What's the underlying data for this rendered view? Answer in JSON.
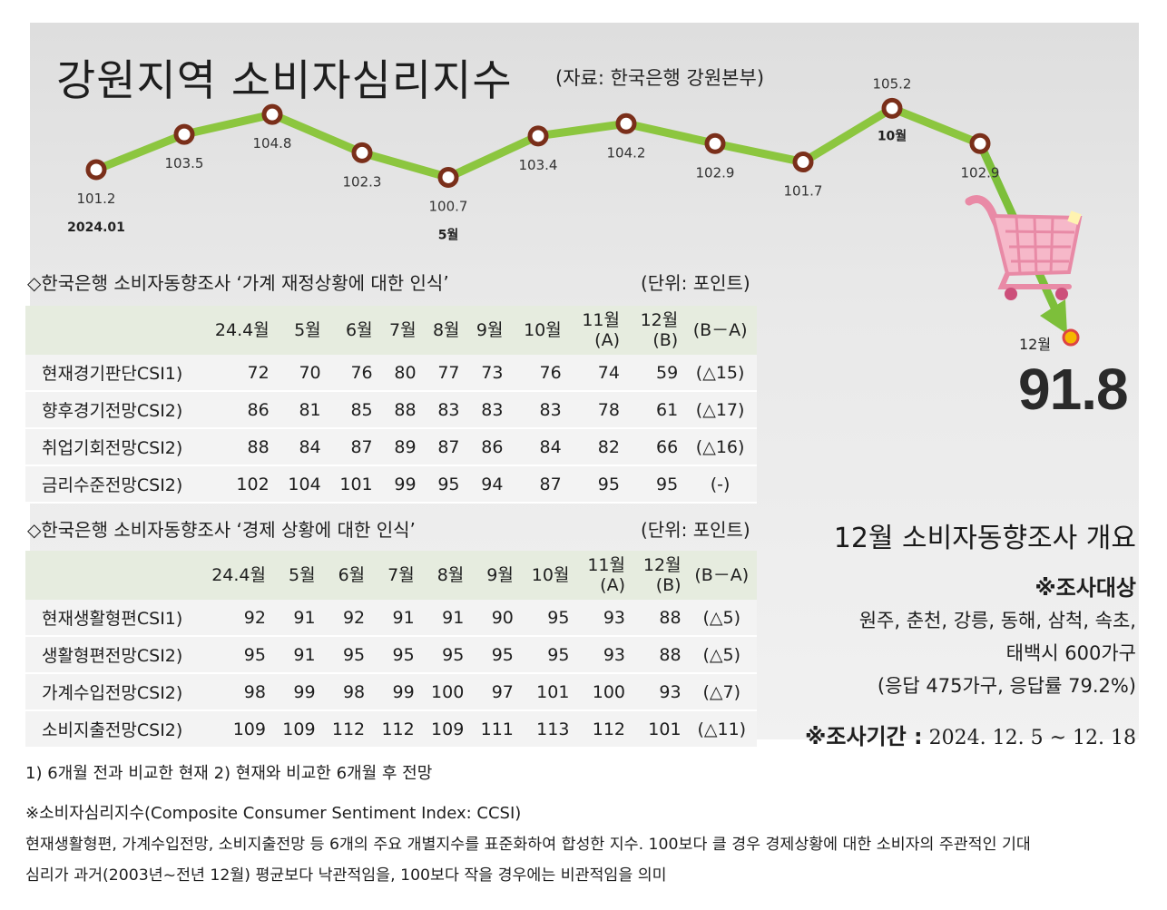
{
  "header": {
    "title": "강원지역 소비자심리지수",
    "source": "(자료: 한국은행 강원본부)"
  },
  "chart_data": {
    "type": "line",
    "points": [
      {
        "label": "101.2",
        "value": 101.2,
        "sub": "2024.01"
      },
      {
        "label": "103.5",
        "value": 103.5,
        "sub": ""
      },
      {
        "label": "104.8",
        "value": 104.8,
        "sub": ""
      },
      {
        "label": "102.3",
        "value": 102.3,
        "sub": ""
      },
      {
        "label": "100.7",
        "value": 100.7,
        "sub": "5월"
      },
      {
        "label": "103.4",
        "value": 103.4,
        "sub": ""
      },
      {
        "label": "104.2",
        "value": 104.2,
        "sub": ""
      },
      {
        "label": "102.9",
        "value": 102.9,
        "sub": ""
      },
      {
        "label": "101.7",
        "value": 101.7,
        "sub": ""
      },
      {
        "label": "105.2",
        "value": 105.2,
        "sub": "10월"
      },
      {
        "label": "102.9",
        "value": 102.9,
        "sub": ""
      },
      {
        "label": "91.8",
        "value": 91.8,
        "sub": "12월"
      }
    ],
    "line_color": "#8cc63f",
    "marker_color": "#7a2f1a",
    "last_marker_color": "#f5b800",
    "arrow_color": "#7dbf3a"
  },
  "highlight": {
    "month": "12월",
    "value": "91.8"
  },
  "table1": {
    "title": "◇한국은행 소비자동향조사 ‘가계 재정상황에 대한 인식’",
    "unit": "(단위: 포인트)",
    "headers": [
      "",
      "24.4월",
      "5월",
      "6월",
      "7월",
      "8월",
      "9월",
      "10월",
      "11월\n(A)",
      "12월\n(B)",
      "(B－A)"
    ],
    "rows": [
      [
        "현재경기판단CSI1)",
        "72",
        "70",
        "76",
        "80",
        "77",
        "73",
        "76",
        "74",
        "59",
        "(△15)"
      ],
      [
        "향후경기전망CSI2)",
        "86",
        "81",
        "85",
        "88",
        "83",
        "83",
        "83",
        "78",
        "61",
        "(△17)"
      ],
      [
        "취업기회전망CSI2)",
        "88",
        "84",
        "87",
        "89",
        "87",
        "86",
        "84",
        "82",
        "66",
        "(△16)"
      ],
      [
        "금리수준전망CSI2)",
        "102",
        "104",
        "101",
        "99",
        "95",
        "94",
        "87",
        "95",
        "95",
        "(-)"
      ]
    ]
  },
  "table2": {
    "title": "◇한국은행 소비자동향조사 ‘경제 상황에 대한 인식’",
    "unit": "(단위: 포인트)",
    "headers": [
      "",
      "24.4월",
      "5월",
      "6월",
      "7월",
      "8월",
      "9월",
      "10월",
      "11월\n(A)",
      "12월\n(B)",
      "(B－A)"
    ],
    "rows": [
      [
        "현재생활형편CSI1)",
        "92",
        "91",
        "92",
        "91",
        "91",
        "90",
        "95",
        "93",
        "88",
        "(△5)"
      ],
      [
        "생활형편전망CSI2)",
        "95",
        "91",
        "95",
        "95",
        "95",
        "95",
        "95",
        "93",
        "88",
        "(△5)"
      ],
      [
        "가계수입전망CSI2)",
        "98",
        "99",
        "98",
        "99",
        "100",
        "97",
        "101",
        "100",
        "93",
        "(△7)"
      ],
      [
        "소비지출전망CSI2)",
        "109",
        "109",
        "112",
        "112",
        "109",
        "111",
        "113",
        "112",
        "101",
        "(△11)"
      ]
    ]
  },
  "overview": {
    "title": "12월 소비자동향조사 개요",
    "target_head": "※조사대상",
    "target_line1": "원주, 춘천, 강릉, 동해, 삼척, 속초,",
    "target_line2": "태백시 600가구",
    "target_line3": "(응답 475가구, 응답률 79.2%)",
    "period_head": "※조사기간 :",
    "period": "2024. 12. 5 ~ 12. 18"
  },
  "footnotes": {
    "note1": "1) 6개월 전과 비교한 현재 2) 현재와 비교한 6개월 후 전망",
    "note2": "※소비자심리지수(Composite Consumer Sentiment Index: CCSI)",
    "note3": "현재생활형편, 가계수입전망, 소비지출전망 등 6개의 주요 개별지수를 표준화하여 합성한 지수. 100보다 클 경우 경제상황에 대한 소비자의 주관적인 기대",
    "note4": "심리가 과거(2003년~전년 12월) 평균보다 낙관적임을, 100보다 작을 경우에는 비관적임을 의미"
  }
}
